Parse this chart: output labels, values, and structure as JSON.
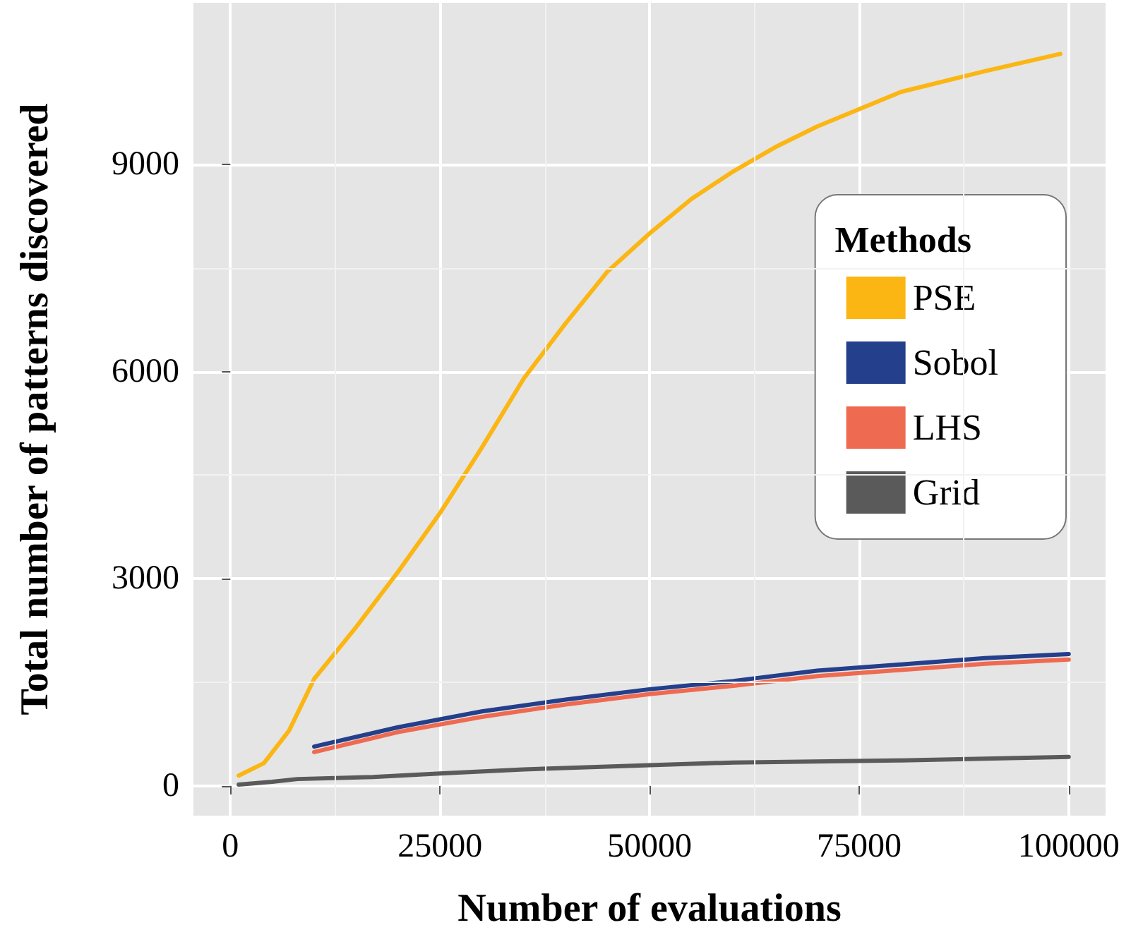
{
  "chart_data": {
    "type": "line",
    "xlabel": "Number of evaluations",
    "ylabel": "Total number of patterns discovered",
    "legend_title": "Methods",
    "xlim": [
      -4400,
      104400
    ],
    "ylim": [
      -430,
      11340
    ],
    "xticks": [
      0,
      25000,
      50000,
      75000,
      100000
    ],
    "yticks": [
      0,
      3000,
      6000,
      9000
    ],
    "grid": true,
    "legend": "top right",
    "marker": "none",
    "line_style": "solid",
    "series": [
      {
        "name": "PSE",
        "color": "#fbb614",
        "x": [
          1000,
          4000,
          7000,
          10000,
          15000,
          20000,
          25000,
          30000,
          35000,
          40000,
          45000,
          50000,
          55000,
          60000,
          65000,
          70000,
          75000,
          80000,
          90000,
          99000
        ],
        "values": [
          150,
          330,
          800,
          1550,
          2300,
          3100,
          3950,
          4900,
          5900,
          6700,
          7450,
          8000,
          8500,
          8900,
          9250,
          9550,
          9800,
          10050,
          10350,
          10600
        ]
      },
      {
        "name": "Sobol",
        "color": "#243f8b",
        "x": [
          10000,
          20000,
          30000,
          40000,
          50000,
          60000,
          70000,
          80000,
          90000,
          100000
        ],
        "values": [
          570,
          850,
          1080,
          1250,
          1400,
          1520,
          1670,
          1760,
          1850,
          1910
        ]
      },
      {
        "name": "LHS",
        "color": "#ee6a50",
        "x": [
          10000,
          20000,
          30000,
          40000,
          50000,
          60000,
          70000,
          80000,
          90000,
          100000
        ],
        "values": [
          490,
          780,
          1000,
          1180,
          1330,
          1450,
          1590,
          1680,
          1770,
          1830
        ]
      },
      {
        "name": "Grid",
        "color": "#5a5a5a",
        "x": [
          1000,
          5000,
          8000,
          17000,
          25000,
          35000,
          50000,
          60000,
          80000,
          100000
        ],
        "values": [
          20,
          60,
          100,
          130,
          180,
          240,
          300,
          340,
          370,
          420
        ]
      }
    ]
  }
}
